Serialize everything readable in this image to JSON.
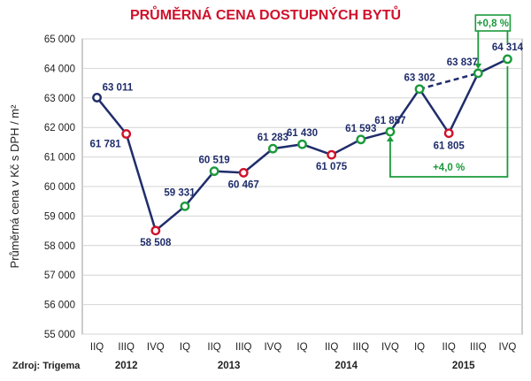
{
  "chart_data": {
    "type": "line",
    "title": "PRŮMĚRNÁ CENA DOSTUPNÝCH BYTŮ",
    "ylabel": "Průměrná cena v Kč s DPH / m²",
    "ylim": [
      55000,
      65000
    ],
    "yticks": [
      55000,
      56000,
      57000,
      58000,
      59000,
      60000,
      61000,
      62000,
      63000,
      64000,
      65000
    ],
    "ytick_labels": [
      "55 000",
      "56 000",
      "57 000",
      "58 000",
      "59 000",
      "60 000",
      "61 000",
      "62 000",
      "63 000",
      "64 000",
      "65 000"
    ],
    "grid": true,
    "categories": [
      "IIQ",
      "IIIQ",
      "IVQ",
      "IQ",
      "IIQ",
      "IIIQ",
      "IVQ",
      "IQ",
      "IIQ",
      "IIIQ",
      "IVQ",
      "IQ",
      "IIQ",
      "IIIQ",
      "IVQ"
    ],
    "years": [
      {
        "label": "2012",
        "from": 0,
        "to": 2
      },
      {
        "label": "2013",
        "from": 3,
        "to": 6
      },
      {
        "label": "2014",
        "from": 7,
        "to": 10
      },
      {
        "label": "2015",
        "from": 11,
        "to": 14
      }
    ],
    "series": [
      {
        "values": [
          63011,
          61781,
          58508,
          59331,
          60519,
          60467,
          61283,
          61430,
          61075,
          61593,
          61857,
          63302,
          61805,
          63837,
          64314
        ],
        "labels": [
          "63 011",
          "61 781",
          "58 508",
          "59 331",
          "60 519",
          "60 467",
          "61 283",
          "61 430",
          "61 075",
          "61 593",
          "61 857",
          "63 302",
          "61 805",
          "63 837",
          "64 314"
        ],
        "marker_colors": [
          "#1f2d6b",
          "#d0112b",
          "#d0112b",
          "#1a9a3a",
          "#1a9a3a",
          "#d0112b",
          "#1a9a3a",
          "#1a9a3a",
          "#d0112b",
          "#1a9a3a",
          "#1a9a3a",
          "#1a9a3a",
          "#d0112b",
          "#1a9a3a",
          "#1a9a3a"
        ]
      }
    ],
    "line_color": "#1f2d6b",
    "dashed_segment": [
      11,
      13
    ],
    "annotations": [
      {
        "text": "+0,8 %",
        "from": 13,
        "to": 14,
        "color": "#1a9a3a"
      },
      {
        "text": "+4,0 %",
        "from": 10,
        "to": 14,
        "color": "#1a9a3a"
      }
    ],
    "source": "Zdroj: Trigema"
  }
}
